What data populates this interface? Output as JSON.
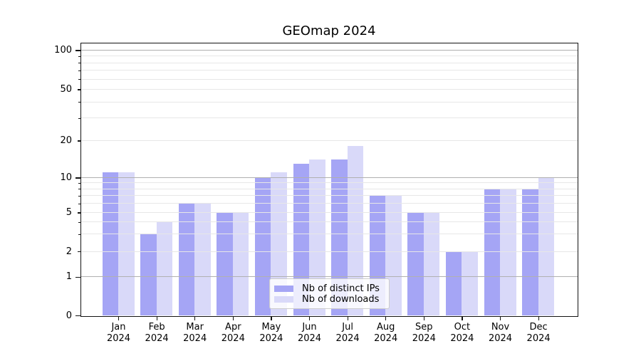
{
  "title": "GEOmap 2024",
  "chart_data": {
    "type": "bar",
    "title": "GEOmap 2024",
    "year": "2024",
    "month_labels": [
      "Jan",
      "Feb",
      "Mar",
      "Apr",
      "May",
      "Jun",
      "Jul",
      "Aug",
      "Sep",
      "Oct",
      "Nov",
      "Dec"
    ],
    "categories": [
      "Jan 2024",
      "Feb 2024",
      "Mar 2024",
      "Apr 2024",
      "May 2024",
      "Jun 2024",
      "Jul 2024",
      "Aug 2024",
      "Sep 2024",
      "Oct 2024",
      "Nov 2024",
      "Dec 2024"
    ],
    "series": [
      {
        "name": "Nb of distinct IPs",
        "color": "#a5a5f5",
        "values": [
          11,
          3,
          6,
          5,
          10,
          13,
          14,
          7,
          5,
          2,
          8,
          8
        ]
      },
      {
        "name": "Nb of downloads",
        "color": "#d9d9f9",
        "values": [
          11,
          4,
          6,
          5,
          11,
          14,
          18,
          7,
          5,
          2,
          8,
          10
        ]
      }
    ],
    "y_axis": {
      "scale": "symlog",
      "tick_labels": [
        0,
        1,
        2,
        5,
        10,
        20,
        50,
        100
      ],
      "major_ticks": [
        0,
        1,
        10,
        100
      ],
      "minor_unlabeled": [
        3,
        4,
        6,
        7,
        8,
        9,
        30,
        40,
        60,
        70,
        80,
        90
      ],
      "range": [
        0,
        100
      ]
    },
    "legend": {
      "position": "lower center",
      "entries": [
        "Nb of distinct IPs",
        "Nb of downloads"
      ]
    },
    "grid": "both",
    "colors": {
      "grid_major": "#b0b0b0",
      "grid_minor": "#e7e7e7",
      "axis": "#121212",
      "text": "#000000"
    }
  }
}
